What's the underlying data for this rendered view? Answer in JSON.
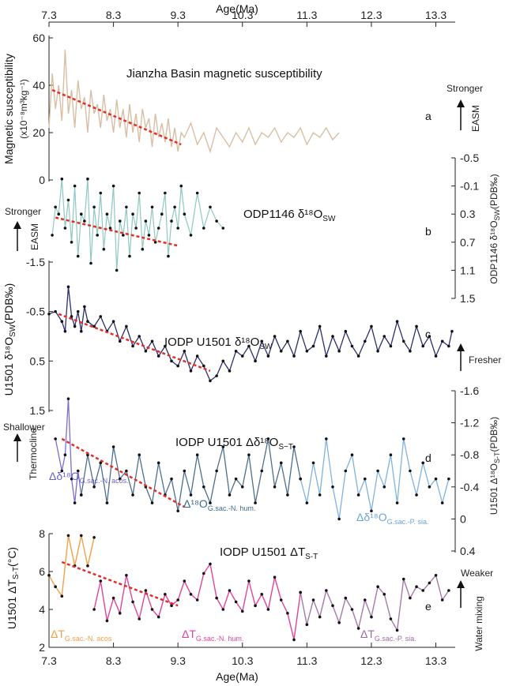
{
  "chart_data": {
    "type": "line",
    "x_axis": {
      "label": "Age(Ma)",
      "ticks": [
        "7.3",
        "8.3",
        "9.3",
        "10.3",
        "11.3",
        "12.3",
        "13.3"
      ],
      "range": [
        7.3,
        13.6
      ]
    },
    "panels": [
      {
        "letter": "a",
        "title": "Jianzha Basin magnetic susceptibility",
        "ylabel_line1": "Magnetic susceptibility",
        "ylabel_line2": "(x10⁻⁸m³kg⁻¹)",
        "y_ticks_left": [
          "60",
          "40",
          "20",
          "0"
        ],
        "ylim": [
          0,
          60
        ],
        "side_label": "EASM",
        "side_arrow_text": "Stronger",
        "color": "#d8bfa3",
        "trend": {
          "x": [
            7.35,
            9.35
          ],
          "y": [
            38,
            15
          ]
        },
        "series": {
          "x": [
            7.3,
            7.35,
            7.4,
            7.45,
            7.5,
            7.55,
            7.6,
            7.65,
            7.7,
            7.75,
            7.8,
            7.85,
            7.9,
            7.95,
            8.0,
            8.05,
            8.1,
            8.15,
            8.2,
            8.25,
            8.3,
            8.35,
            8.4,
            8.45,
            8.5,
            8.55,
            8.6,
            8.65,
            8.7,
            8.75,
            8.8,
            8.85,
            8.9,
            8.95,
            9.0,
            9.05,
            9.1,
            9.15,
            9.2,
            9.25,
            9.3,
            9.35,
            9.4,
            9.5,
            9.6,
            9.7,
            9.8,
            9.9,
            10.0,
            10.1,
            10.2,
            10.3,
            10.4,
            10.5,
            10.6,
            10.7,
            10.8,
            10.9,
            11.0,
            11.1,
            11.2,
            11.3,
            11.4,
            11.5,
            11.6,
            11.7,
            11.8
          ],
          "y": [
            22,
            45,
            30,
            40,
            25,
            55,
            28,
            38,
            22,
            42,
            30,
            35,
            20,
            38,
            28,
            32,
            22,
            36,
            25,
            30,
            20,
            34,
            22,
            30,
            18,
            32,
            20,
            28,
            16,
            30,
            22,
            26,
            14,
            28,
            18,
            24,
            16,
            26,
            14,
            22,
            12,
            20,
            18,
            24,
            15,
            20,
            12,
            22,
            18,
            14,
            20,
            16,
            22,
            15,
            20,
            18,
            22,
            16,
            20,
            18,
            22,
            15,
            20,
            18,
            22,
            17,
            20
          ]
        }
      },
      {
        "letter": "b",
        "title": "ODP1146 δ¹⁸O",
        "title_sub": "SW",
        "ylabel_right": "ODP1146 δ¹⁸O",
        "ylabel_right_sub": "SW",
        "ylabel_right_unit": "(PDB‰)",
        "y_ticks_right": [
          "-0.5",
          "-0.1",
          "0.3",
          "0.7",
          "1.1",
          "1.5"
        ],
        "ylim": [
          -0.5,
          1.5
        ],
        "side_label": "EASM",
        "side_arrow_text": "Stronger",
        "color": "#8fc8c1",
        "trend": {
          "x": [
            7.4,
            9.3
          ],
          "y": [
            0.35,
            0.75
          ]
        },
        "series": {
          "x": [
            7.35,
            7.4,
            7.45,
            7.5,
            7.55,
            7.6,
            7.65,
            7.7,
            7.75,
            7.8,
            7.85,
            7.9,
            7.95,
            8.0,
            8.05,
            8.1,
            8.15,
            8.2,
            8.25,
            8.3,
            8.35,
            8.4,
            8.45,
            8.5,
            8.55,
            8.6,
            8.65,
            8.7,
            8.75,
            8.8,
            8.85,
            8.9,
            8.95,
            9.0,
            9.05,
            9.1,
            9.15,
            9.2,
            9.25,
            9.3,
            9.35,
            9.4,
            9.5,
            9.6,
            9.7,
            9.8,
            9.9,
            10.0
          ],
          "y": [
            0.6,
            0.2,
            0.3,
            -0.2,
            0.5,
            0.1,
            0.7,
            -0.1,
            0.9,
            0.3,
            0.4,
            -0.2,
            1.0,
            0.2,
            0.6,
            0.0,
            0.8,
            0.3,
            0.5,
            -0.1,
            1.1,
            0.4,
            0.6,
            0.2,
            0.9,
            0.3,
            0.5,
            0.0,
            0.8,
            0.4,
            0.6,
            0.2,
            0.7,
            0.5,
            0.3,
            0.0,
            0.9,
            0.4,
            0.2,
            0.5,
            -0.1,
            0.3,
            0.6,
            0.0,
            0.5,
            0.2,
            0.4,
            0.5
          ]
        }
      },
      {
        "letter": "c",
        "title": "IODP U1501 δ¹⁸O",
        "title_sub": "SW",
        "ylabel_left": "U1501 δ¹⁸O",
        "ylabel_left_sub": "SW",
        "ylabel_left_unit": "(PDB‰)",
        "y_ticks_left": [
          "-1.5",
          "-0.5",
          "0.5",
          "1.5"
        ],
        "ylim": [
          -1.5,
          1.5
        ],
        "side_arrow_text": "Fresher",
        "color": "#2b2f6e",
        "trend": {
          "x": [
            7.45,
            9.8
          ],
          "y": [
            -0.45,
            0.7
          ]
        },
        "series": {
          "x": [
            7.3,
            7.4,
            7.5,
            7.55,
            7.6,
            7.65,
            7.7,
            7.75,
            7.8,
            7.85,
            7.9,
            8.0,
            8.1,
            8.2,
            8.3,
            8.4,
            8.5,
            8.6,
            8.7,
            8.8,
            8.9,
            9.0,
            9.1,
            9.2,
            9.3,
            9.4,
            9.5,
            9.6,
            9.7,
            9.8,
            9.9,
            10.0,
            10.1,
            10.2,
            10.3,
            10.4,
            10.5,
            10.6,
            10.7,
            10.8,
            10.9,
            11.0,
            11.1,
            11.2,
            11.3,
            11.4,
            11.5,
            11.6,
            11.7,
            11.8,
            11.9,
            12.0,
            12.1,
            12.2,
            12.3,
            12.4,
            12.5,
            12.6,
            12.7,
            12.8,
            12.9,
            13.0,
            13.1,
            13.2,
            13.3,
            13.4,
            13.5,
            13.55
          ],
          "y": [
            -0.45,
            -0.5,
            -0.3,
            -0.1,
            -1.0,
            -0.4,
            -0.2,
            -0.5,
            -0.1,
            -0.6,
            -0.3,
            -0.2,
            -0.4,
            -0.1,
            -0.3,
            0.1,
            -0.2,
            0.2,
            0.0,
            0.3,
            0.1,
            0.4,
            0.2,
            0.5,
            0.6,
            0.3,
            0.7,
            0.4,
            0.6,
            0.9,
            0.8,
            0.5,
            0.7,
            0.3,
            0.4,
            0.2,
            0.5,
            0.1,
            0.4,
            0.0,
            0.3,
            0.1,
            0.4,
            -0.1,
            0.3,
            0.2,
            -0.2,
            0.4,
            0.0,
            0.3,
            -0.1,
            0.2,
            0.4,
            0.1,
            -0.2,
            0.3,
            0.0,
            0.2,
            -0.3,
            0.1,
            0.3,
            -0.2,
            0.2,
            0.0,
            0.4,
            0.1,
            0.2,
            -0.1
          ]
        }
      },
      {
        "letter": "d",
        "title": "IODP U1501 Δδ¹⁸O",
        "title_sub": "S−T",
        "ylabel_right": "U1501 Δ¹⁸O",
        "ylabel_right_sub": "S-T",
        "ylabel_right_unit": "(PDB‰)",
        "y_ticks_right": [
          "-1.6",
          "-1.2",
          "-0.8",
          "-0.4",
          "0",
          "0.4"
        ],
        "ylim": [
          -1.6,
          0.4
        ],
        "side_label": "Thermocline",
        "side_arrow_text": "Shallower",
        "annotations": [
          {
            "text": "Δδ¹⁸O",
            "sub": "G.sac.-N. acos.",
            "color": "#6a63c7"
          },
          {
            "text": "Δ¹⁸O",
            "sub": "G.sac.-N. hum.",
            "color": "#3d6a8c"
          },
          {
            "text": "Δδ¹⁸O",
            "sub": "G.sac.-P. sia.",
            "color": "#6aa3d6"
          }
        ],
        "trend": {
          "x": [
            7.5,
            9.4
          ],
          "y": [
            -1.0,
            -0.15
          ]
        },
        "series": [
          {
            "name": "acos",
            "color": "#7a6fd0",
            "x": [
              7.4,
              7.5,
              7.55,
              7.6,
              7.65,
              7.7,
              7.75,
              7.8
            ],
            "y": [
              -1.0,
              -0.6,
              -0.8,
              -1.5,
              -0.5,
              -0.2,
              -0.6,
              -0.3
            ]
          },
          {
            "name": "hum",
            "color": "#4d6f8f",
            "x": [
              7.8,
              7.9,
              8.0,
              8.1,
              8.2,
              8.3,
              8.4,
              8.5,
              8.6,
              8.7,
              8.8,
              8.9,
              9.0,
              9.1,
              9.2,
              9.3,
              9.4,
              9.5,
              9.6,
              9.7,
              9.8,
              9.9,
              10.0,
              10.1,
              10.2,
              10.3,
              10.4,
              10.5,
              10.6,
              10.7,
              10.8,
              10.9,
              11.0,
              11.1,
              11.2
            ],
            "y": [
              -0.3,
              -0.8,
              -0.4,
              -0.7,
              -0.2,
              -0.9,
              -0.5,
              -0.6,
              -0.3,
              -0.8,
              -0.4,
              -0.2,
              -0.7,
              -0.3,
              -0.5,
              -0.1,
              -0.6,
              -0.3,
              -0.8,
              -0.4,
              -0.2,
              -0.6,
              -0.9,
              -0.3,
              -0.5,
              -0.4,
              -0.8,
              -0.2,
              -0.6,
              -1.0,
              -0.4,
              -0.7,
              -0.3,
              -0.9,
              -0.5
            ]
          },
          {
            "name": "sia",
            "color": "#7fb2e0",
            "x": [
              11.2,
              11.3,
              11.4,
              11.5,
              11.6,
              11.7,
              11.8,
              11.9,
              12.0,
              12.1,
              12.2,
              12.3,
              12.4,
              12.5,
              12.6,
              12.7,
              12.8,
              12.9,
              13.0,
              13.1,
              13.2,
              13.3,
              13.4,
              13.5
            ],
            "y": [
              -0.5,
              -0.2,
              -0.7,
              -0.3,
              -1.0,
              -0.4,
              0.0,
              -0.6,
              -0.8,
              -0.3,
              -0.5,
              -0.1,
              -0.6,
              -0.4,
              -0.8,
              -0.2,
              -1.0,
              -0.6,
              -0.3,
              -0.7,
              -0.4,
              -0.5,
              -0.2,
              -0.5
            ]
          }
        ]
      },
      {
        "letter": "e",
        "title": "IODP U1501 ΔT",
        "title_sub": "S-T",
        "ylabel_left": "U1501 ΔT",
        "ylabel_left_sub": "S-T",
        "ylabel_left_unit": "(°C)",
        "y_ticks_left": [
          "8",
          "6",
          "4",
          "2"
        ],
        "ylim": [
          2,
          8
        ],
        "side_label": "Water mixing",
        "side_arrow_text": "Weaker",
        "annotations": [
          {
            "text": "ΔT",
            "sub": "G.sac.-N. acos",
            "color": "#f0a04b"
          },
          {
            "text": "ΔT",
            "sub": "G.sac.-N. hum.",
            "color": "#e0449a"
          },
          {
            "text": "ΔT",
            "sub": "G.sac.-P. sia.",
            "color": "#9b6aa0"
          }
        ],
        "trend": {
          "x": [
            7.5,
            9.3
          ],
          "y": [
            6.5,
            4.2
          ]
        },
        "series": [
          {
            "name": "acos",
            "color": "#f0a04b",
            "x": [
              7.3,
              7.4,
              7.5,
              7.6,
              7.7,
              7.8,
              7.9,
              8.0
            ],
            "y": [
              5.8,
              5.2,
              4.7,
              7.9,
              6.3,
              7.9,
              6.3,
              7.8
            ]
          },
          {
            "name": "hum",
            "color": "#e0449a",
            "x": [
              8.0,
              8.1,
              8.2,
              8.3,
              8.4,
              8.5,
              8.6,
              8.7,
              8.8,
              8.9,
              9.0,
              9.1,
              9.2,
              9.3,
              9.4,
              9.5,
              9.6,
              9.7,
              9.8,
              9.9,
              10.0,
              10.1,
              10.2,
              10.3,
              10.4,
              10.5,
              10.6,
              10.7,
              10.8,
              10.9,
              11.0,
              11.1,
              11.2
            ],
            "y": [
              4.0,
              5.5,
              3.4,
              4.6,
              3.8,
              5.8,
              4.4,
              3.5,
              5.0,
              4.0,
              3.6,
              4.8,
              4.2,
              4.5,
              5.5,
              4.8,
              4.5,
              5.9,
              6.4,
              4.6,
              4.0,
              5.0,
              4.4,
              3.9,
              5.5,
              4.2,
              4.8,
              4.0,
              5.7,
              4.5,
              3.8,
              2.4,
              4.9
            ]
          },
          {
            "name": "sia",
            "color": "#a57aa8",
            "x": [
              11.2,
              11.3,
              11.4,
              11.5,
              11.6,
              11.7,
              11.8,
              11.9,
              12.0,
              12.1,
              12.2,
              12.3,
              12.4,
              12.5,
              12.6,
              12.7,
              12.8,
              12.9,
              13.0,
              13.1,
              13.2,
              13.3,
              13.4,
              13.5
            ],
            "y": [
              4.9,
              3.2,
              4.5,
              3.6,
              5.0,
              4.2,
              3.3,
              4.6,
              4.0,
              3.0,
              4.5,
              3.6,
              5.2,
              4.8,
              3.5,
              2.9,
              5.6,
              4.6,
              5.2,
              5.0,
              5.4,
              5.8,
              4.5,
              5.0
            ]
          }
        ]
      }
    ]
  }
}
